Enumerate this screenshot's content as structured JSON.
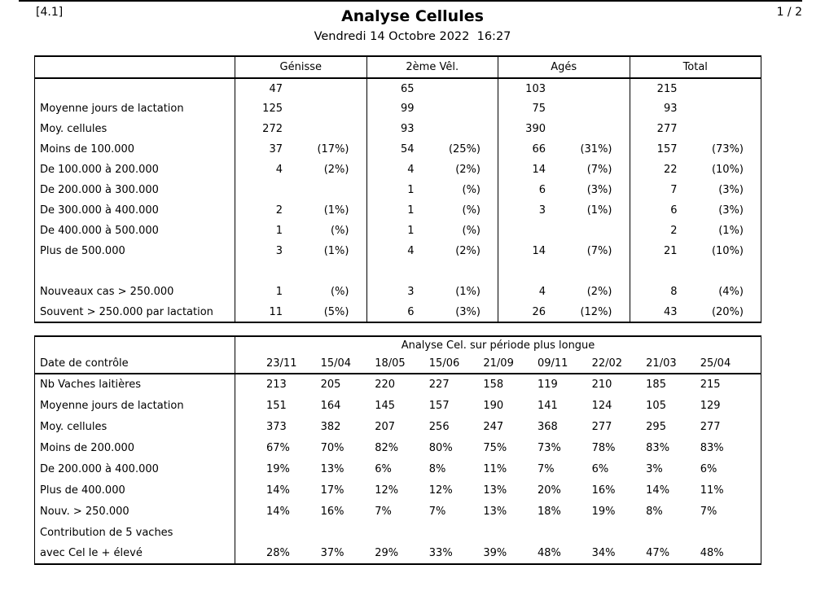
{
  "page": {
    "section_ref": "[4.1]",
    "page_number": "1 / 2",
    "title": "Analyse Cellules",
    "subtitle": "Vendredi 14 Octobre 2022  16:27"
  },
  "table1": {
    "columns": [
      "Génisse",
      "2ème Vêl.",
      "Agés",
      "Total"
    ],
    "rows": [
      {
        "label": "",
        "cells": [
          {
            "n": "47",
            "p": ""
          },
          {
            "n": "65",
            "p": ""
          },
          {
            "n": "103",
            "p": ""
          },
          {
            "n": "215",
            "p": ""
          }
        ]
      },
      {
        "label": "Moyenne jours de lactation",
        "cells": [
          {
            "n": "125",
            "p": ""
          },
          {
            "n": "99",
            "p": ""
          },
          {
            "n": "75",
            "p": ""
          },
          {
            "n": "93",
            "p": ""
          }
        ]
      },
      {
        "label": "Moy. cellules",
        "cells": [
          {
            "n": "272",
            "p": ""
          },
          {
            "n": "93",
            "p": ""
          },
          {
            "n": "390",
            "p": ""
          },
          {
            "n": "277",
            "p": ""
          }
        ]
      },
      {
        "label": "Moins de 100.000",
        "cells": [
          {
            "n": "37",
            "p": "(17%)"
          },
          {
            "n": "54",
            "p": "(25%)"
          },
          {
            "n": "66",
            "p": "(31%)"
          },
          {
            "n": "157",
            "p": "(73%)"
          }
        ]
      },
      {
        "label": "De 100.000 à 200.000",
        "cells": [
          {
            "n": "4",
            "p": "(2%)"
          },
          {
            "n": "4",
            "p": "(2%)"
          },
          {
            "n": "14",
            "p": "(7%)"
          },
          {
            "n": "22",
            "p": "(10%)"
          }
        ]
      },
      {
        "label": "De 200.000 à 300.000",
        "cells": [
          {
            "n": "",
            "p": ""
          },
          {
            "n": "1",
            "p": "(%)"
          },
          {
            "n": "6",
            "p": "(3%)"
          },
          {
            "n": "7",
            "p": "(3%)"
          }
        ]
      },
      {
        "label": "De 300.000 à 400.000",
        "cells": [
          {
            "n": "2",
            "p": "(1%)"
          },
          {
            "n": "1",
            "p": "(%)"
          },
          {
            "n": "3",
            "p": "(1%)"
          },
          {
            "n": "6",
            "p": "(3%)"
          }
        ]
      },
      {
        "label": "De 400.000 à 500.000",
        "cells": [
          {
            "n": "1",
            "p": "(%)"
          },
          {
            "n": "1",
            "p": "(%)"
          },
          {
            "n": "",
            "p": ""
          },
          {
            "n": "2",
            "p": "(1%)"
          }
        ]
      },
      {
        "label": "Plus de 500.000",
        "cells": [
          {
            "n": "3",
            "p": "(1%)"
          },
          {
            "n": "4",
            "p": "(2%)"
          },
          {
            "n": "14",
            "p": "(7%)"
          },
          {
            "n": "21",
            "p": "(10%)"
          }
        ]
      },
      {
        "label": "",
        "cells": [
          {
            "n": "",
            "p": ""
          },
          {
            "n": "",
            "p": ""
          },
          {
            "n": "",
            "p": ""
          },
          {
            "n": "",
            "p": ""
          }
        ]
      },
      {
        "label": "Nouveaux cas > 250.000",
        "cells": [
          {
            "n": "1",
            "p": "(%)"
          },
          {
            "n": "3",
            "p": "(1%)"
          },
          {
            "n": "4",
            "p": "(2%)"
          },
          {
            "n": "8",
            "p": "(4%)"
          }
        ]
      },
      {
        "label": "Souvent > 250.000 par lactation",
        "cells": [
          {
            "n": "11",
            "p": "(5%)"
          },
          {
            "n": "6",
            "p": "(3%)"
          },
          {
            "n": "26",
            "p": "(12%)"
          },
          {
            "n": "43",
            "p": "(20%)"
          }
        ]
      }
    ]
  },
  "table2": {
    "group_header": "Analyse Cel. sur période plus longue",
    "date_row_label": "Date de contrôle",
    "dates": [
      "23/11",
      "15/04",
      "18/05",
      "15/06",
      "21/09",
      "09/11",
      "22/02",
      "21/03",
      "25/04"
    ],
    "rows": [
      {
        "label": "Nb Vaches laitières",
        "values": [
          "213",
          "205",
          "220",
          "227",
          "158",
          "119",
          "210",
          "185",
          "215"
        ]
      },
      {
        "label": "Moyenne jours de lactation",
        "values": [
          "151",
          "164",
          "145",
          "157",
          "190",
          "141",
          "124",
          "105",
          "129"
        ]
      },
      {
        "label": "Moy. cellules",
        "values": [
          "373",
          "382",
          "207",
          "256",
          "247",
          "368",
          "277",
          "295",
          "277"
        ]
      },
      {
        "label": "Moins de 200.000",
        "values": [
          "67%",
          "70%",
          "82%",
          "80%",
          "75%",
          "73%",
          "78%",
          "83%",
          "83%"
        ]
      },
      {
        "label": "De 200.000 à 400.000",
        "values": [
          "19%",
          "13%",
          "6%",
          "8%",
          "11%",
          "7%",
          "6%",
          "3%",
          "6%"
        ]
      },
      {
        "label": "Plus de 400.000",
        "values": [
          "14%",
          "17%",
          "12%",
          "12%",
          "13%",
          "20%",
          "16%",
          "14%",
          "11%"
        ]
      },
      {
        "label": "Nouv. > 250.000",
        "values": [
          "14%",
          "16%",
          "7%",
          "7%",
          "13%",
          "18%",
          "19%",
          "8%",
          "7%"
        ]
      },
      {
        "label": "Contribution de 5 vaches",
        "values": [
          "",
          "",
          "",
          "",
          "",
          "",
          "",
          "",
          ""
        ]
      },
      {
        "label": "avec Cel le + élevé",
        "values": [
          "28%",
          "37%",
          "29%",
          "33%",
          "39%",
          "48%",
          "34%",
          "47%",
          "48%"
        ]
      }
    ]
  }
}
